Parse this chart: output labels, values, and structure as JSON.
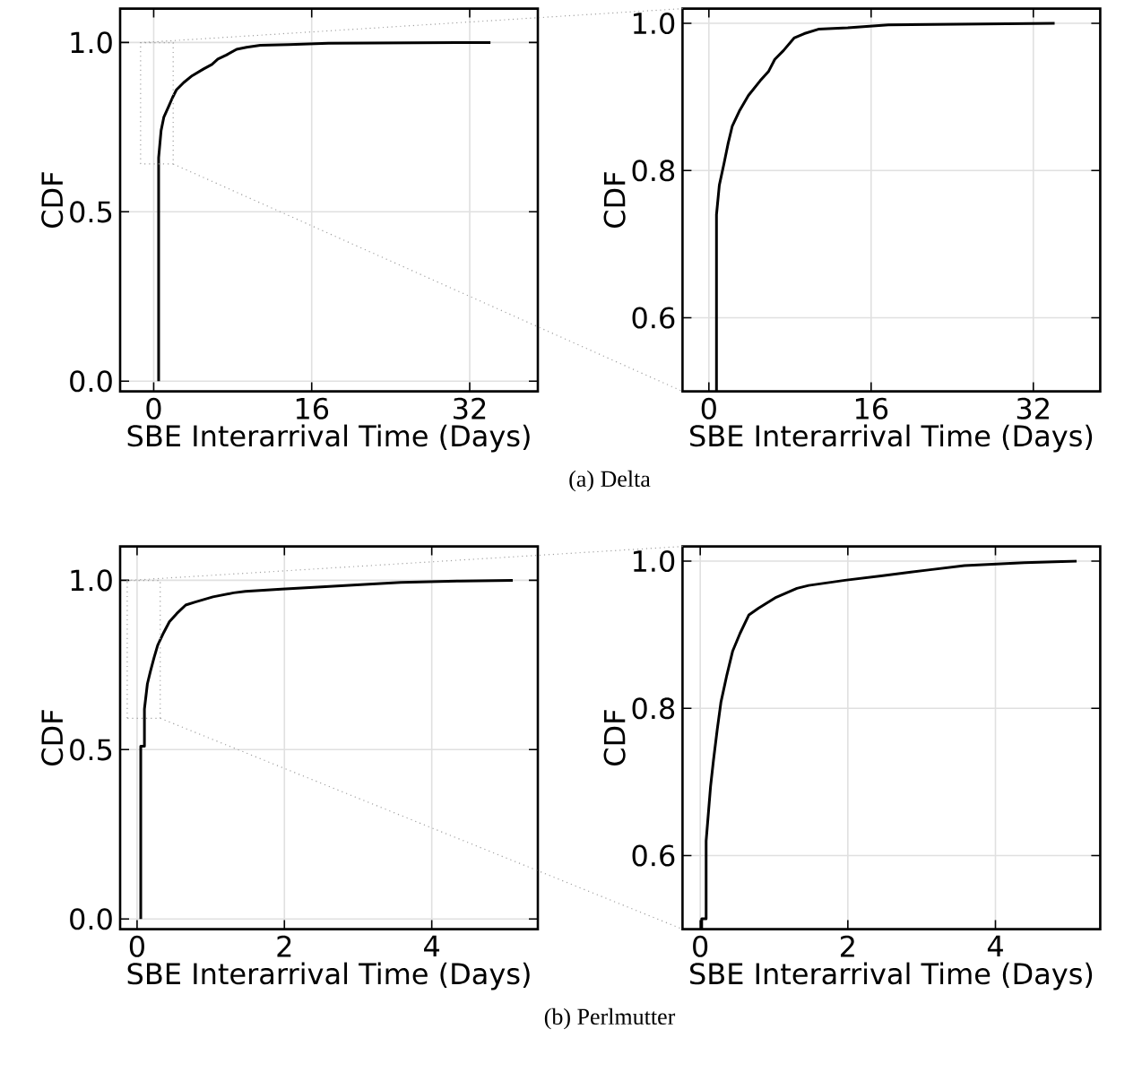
{
  "chart_data": [
    {
      "type": "line",
      "xlabel": "SBE Interarrival Time (Days)",
      "ylabel": "CDF",
      "xlim": [
        -3.4,
        38.9
      ],
      "ylim": [
        -0.03,
        1.1
      ],
      "xticks": [
        0,
        16,
        32
      ],
      "yticks": [
        {
          "value": 0,
          "label": "0.0"
        },
        {
          "value": 0.5,
          "label": "0.5"
        },
        {
          "value": 1,
          "label": "1.0"
        }
      ],
      "grid": true,
      "annotations": [
        "(a) Delta"
      ],
      "series": [
        {
          "color": "#000000",
          "x": [
            0.5,
            0.5,
            0.75,
            1.03,
            1.5,
            1.9,
            2.3,
            3.05,
            3.9,
            5.06,
            5.9,
            6.5,
            7.36,
            8.4,
            9.4,
            10.8,
            13.7,
            17.7,
            34.1
          ],
          "values": [
            0,
            0.66,
            0.74,
            0.78,
            0.81,
            0.837,
            0.86,
            0.882,
            0.902,
            0.922,
            0.935,
            0.951,
            0.963,
            0.98,
            0.986,
            0.992,
            0.994,
            0.998,
            1.0
          ]
        }
      ]
    },
    {
      "type": "line",
      "xlabel": "SBE Interarrival Time (Days)",
      "ylabel": "CDF",
      "xlim": [
        -2.6,
        38.6
      ],
      "ylim": [
        0.5,
        1.02
      ],
      "xticks": [
        0,
        16,
        32
      ],
      "yticks": [
        {
          "value": 0.6,
          "label": "0.6"
        },
        {
          "value": 0.8,
          "label": "0.8"
        },
        {
          "value": 1,
          "label": "1.0"
        }
      ],
      "grid": true,
      "series": [
        {
          "color": "#000000",
          "x": [
            0.75,
            0.75,
            1.03,
            1.5,
            1.9,
            2.3,
            3.05,
            3.9,
            5.06,
            5.9,
            6.5,
            7.36,
            8.4,
            9.4,
            10.8,
            13.7,
            17.7,
            34.1
          ],
          "values": [
            0.5,
            0.74,
            0.78,
            0.81,
            0.837,
            0.86,
            0.882,
            0.902,
            0.922,
            0.935,
            0.951,
            0.963,
            0.98,
            0.986,
            0.992,
            0.994,
            0.998,
            1.0
          ]
        }
      ]
    },
    {
      "type": "line",
      "xlabel": "SBE Interarrival Time (Days)",
      "ylabel": "CDF",
      "xlim": [
        -0.23,
        5.44
      ],
      "ylim": [
        -0.03,
        1.1
      ],
      "xticks": [
        0,
        2,
        4
      ],
      "yticks": [
        {
          "value": 0,
          "label": "0.0"
        },
        {
          "value": 0.5,
          "label": "0.5"
        },
        {
          "value": 1,
          "label": "1.0"
        }
      ],
      "grid": true,
      "annotations": [
        "(b) Perlmutter"
      ],
      "series": [
        {
          "color": "#000000",
          "x": [
            0.05,
            0.05,
            0.1,
            0.1,
            0.14,
            0.18,
            0.23,
            0.28,
            0.36,
            0.44,
            0.54,
            0.66,
            0.79,
            1.03,
            1.31,
            1.47,
            1.96,
            2.45,
            3.09,
            3.58,
            4.39,
            5.1
          ],
          "values": [
            0,
            0.51,
            0.51,
            0.62,
            0.694,
            0.73,
            0.771,
            0.808,
            0.845,
            0.878,
            0.902,
            0.927,
            0.936,
            0.951,
            0.963,
            0.967,
            0.974,
            0.98,
            0.988,
            0.994,
            0.998,
            1.0
          ]
        }
      ]
    },
    {
      "type": "line",
      "xlabel": "SBE Interarrival Time (Days)",
      "ylabel": "CDF",
      "xlim": [
        -0.24,
        5.42
      ],
      "ylim": [
        0.5,
        1.02
      ],
      "xticks": [
        0,
        2,
        4
      ],
      "yticks": [
        {
          "value": 0.6,
          "label": "0.6"
        },
        {
          "value": 0.8,
          "label": "0.8"
        },
        {
          "value": 1,
          "label": "1.0"
        }
      ],
      "grid": true,
      "series": [
        {
          "color": "#000000",
          "x": [
            0.02,
            0.02,
            0.08,
            0.08,
            0.14,
            0.18,
            0.23,
            0.28,
            0.36,
            0.44,
            0.54,
            0.66,
            0.79,
            1.03,
            1.31,
            1.47,
            1.96,
            2.45,
            3.09,
            3.58,
            4.39,
            5.1
          ],
          "values": [
            0.5,
            0.514,
            0.514,
            0.62,
            0.694,
            0.73,
            0.771,
            0.808,
            0.845,
            0.878,
            0.902,
            0.927,
            0.936,
            0.951,
            0.963,
            0.967,
            0.974,
            0.98,
            0.988,
            0.994,
            0.998,
            1.0
          ]
        }
      ]
    }
  ]
}
